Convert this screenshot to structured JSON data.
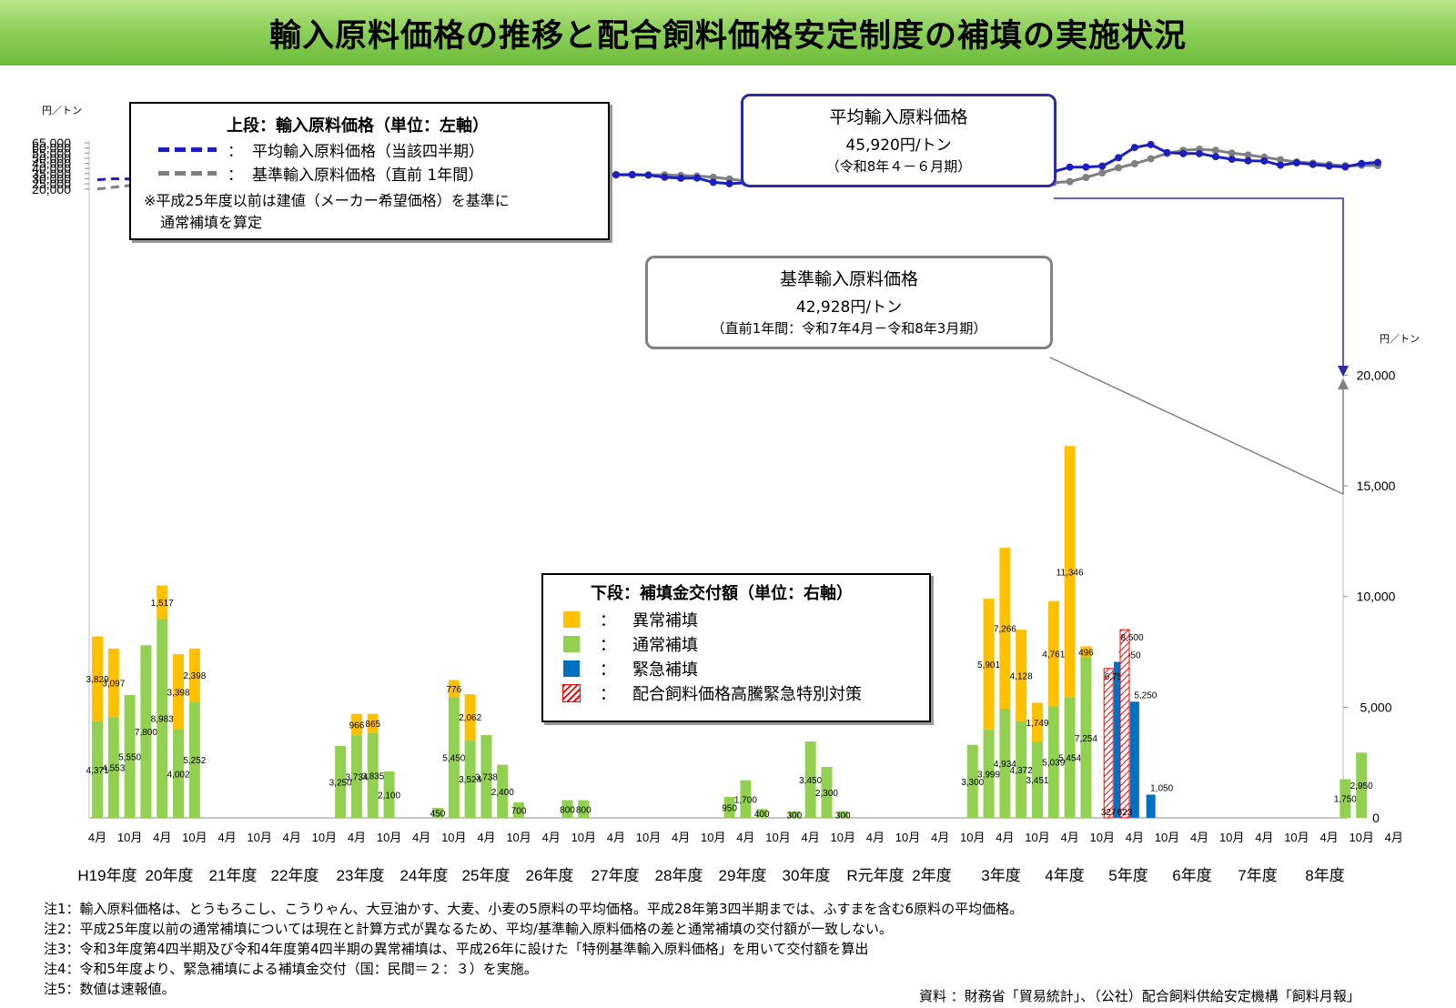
{
  "title": "輸入原料価格の推移と配合飼料価格安定制度の補填の実施状況",
  "left_axis_unit": "円／トン",
  "right_axis_unit": "円／トン",
  "legend_top": {
    "heading": "上段：輸入原料価格（単位：左軸）",
    "avg_label": "平均輸入原料価格（当該四半期）",
    "base_label": "基準輸入原料価格（直前 1年間）",
    "note_line1": "※平成25年度以前は建値（メーカー希望価格）を基準に",
    "note_line2": "通常補填を算定",
    "colon": "："
  },
  "legend_bottom": {
    "heading": "下段：補填金交付額（単位：右軸）",
    "items": [
      {
        "label": "異常補填",
        "color": "#ffc000"
      },
      {
        "label": "通常補填",
        "color": "#92d050"
      },
      {
        "label": "緊急補填",
        "color": "#0070c0"
      },
      {
        "label": "配合飼料価格高騰緊急特別対策",
        "color": "#ff0000"
      }
    ],
    "colon": "："
  },
  "callout_avg": {
    "line1": "平均輸入原料価格",
    "line2": "45,920円/トン",
    "line3": "（令和8年４－６月期）"
  },
  "callout_base": {
    "line1": "基準輸入原料価格",
    "line2": "42,928円/トン",
    "line3": "（直前1年間：令和7年4月－令和8年3月期）"
  },
  "colors": {
    "avg": "#1b1fbf",
    "base": "#7f7f7f",
    "abnormal": "#ffc000",
    "normal": "#92d050",
    "emergency": "#0070c0",
    "special": "#ff0000",
    "grid": "#d9d9d9"
  },
  "notes": [
    "注1：輸入原料価格は、とうもろこし、こうりゃん、大豆油かす、大麦、小麦の5原料の平均価格。平成28年第3四半期までは、ふすまを含む6原料の平均価格。",
    "注2：平成25年度以前の通常補填については現在と計算方式が異なるため、平均/基準輸入原料価格の差と通常補填の交付額が一致しない。",
    "注3：令和3年度第4四半期及び令和4年度第4四半期の異常補填は、平成26年に設けた「特例基準輸入原料価格」を用いて交付額を算出",
    "注4：令和5年度より、緊急補填による補填金交付（国：民間＝２：３）を実施。",
    "注5：数値は速報値。"
  ],
  "source": "資料 ：財務省「貿易統計」、（公社）配合飼料供給安定機構「飼料月報」",
  "chart_data": {
    "type": "line",
    "left_ylim": [
      15000,
      65000
    ],
    "left_ticks": [
      "65,000",
      "60,000",
      "55,000",
      "50,000",
      "45,000",
      "40,000",
      "35,000",
      "30,000",
      "25,000",
      "20,000"
    ],
    "right_ylim": [
      0,
      22000
    ],
    "right_ticks": [
      "0",
      "5,000",
      "10,000",
      "15,000",
      "20,000"
    ],
    "x_month_labels": [
      "4月",
      "10月",
      "4月",
      "10月",
      "4月",
      "10月",
      "4月",
      "10月",
      "4月",
      "10月",
      "4月",
      "10月",
      "4月",
      "10月",
      "4月",
      "10月",
      "4月",
      "10月",
      "4月",
      "10月",
      "4月",
      "10月",
      "4月",
      "10月",
      "4月",
      "10月",
      "4月",
      "10月",
      "4月",
      "10月",
      "4月",
      "10月",
      "4月",
      "10月",
      "4月",
      "10月",
      "4月",
      "10月",
      "4月",
      "10月",
      "4月"
    ],
    "x_year_labels": [
      "H19年度",
      "20年度",
      "21年度",
      "22年度",
      "23年度",
      "24年度",
      "25年度",
      "26年度",
      "27年度",
      "28年度",
      "29年度",
      "30年度",
      "R元年度",
      "2年度",
      "3年度",
      "4年度",
      "5年度",
      "6年度",
      "7年度",
      "8年度"
    ],
    "series": [
      {
        "name": "平均輸入原料価格（当該四半期）",
        "style": "dashed-until-index-28",
        "values": [
          29000,
          30000,
          29800,
          31500,
          34000,
          37000,
          41000,
          41200,
          27800,
          22800,
          24500,
          24000,
          24500,
          25000,
          24000,
          22500,
          26500,
          29000,
          30000,
          29000,
          27000,
          27500,
          27800,
          30500,
          33500,
          36500,
          36500,
          34500,
          32500,
          33500,
          32800,
          33900,
          34000,
          34100,
          33500,
          31500,
          30500,
          30700,
          26500,
          25200,
          26000,
          27300,
          27500,
          26800,
          26500,
          26400,
          27000,
          26800,
          29500,
          30000,
          29000,
          28800,
          28000,
          27800,
          27300,
          27000,
          25200,
          25100,
          29500,
          37000,
          41300,
          41400,
          42300,
          50500,
          60500,
          63300,
          55500,
          54500,
          54500,
          51500,
          49000,
          47500,
          47300,
          43200,
          45500,
          44000,
          42300,
          41500,
          44800,
          45920
        ]
      },
      {
        "name": "基準輸入原料価格（直前 1年間）",
        "style": "dashed-until-index-28",
        "values": [
          20000,
          21700,
          23400,
          25000,
          26700,
          28300,
          29800,
          31700,
          33600,
          33000,
          29000,
          25000,
          23200,
          22700,
          22600,
          22500,
          22200,
          22700,
          24000,
          25600,
          27500,
          28500,
          28700,
          28300,
          28500,
          30000,
          32200,
          34200,
          35300,
          35700,
          35500,
          34500,
          33600,
          33600,
          33700,
          33700,
          33200,
          32600,
          31500,
          29800,
          27800,
          26600,
          26300,
          26300,
          26400,
          26500,
          26600,
          26900,
          26900,
          27500,
          28600,
          29500,
          30000,
          29500,
          28800,
          28300,
          27800,
          27300,
          26700,
          26300,
          27200,
          31300,
          35800,
          40700,
          44600,
          49500,
          54600,
          57700,
          58800,
          57700,
          55000,
          53100,
          51000,
          48500,
          46400,
          45200,
          43800,
          42700,
          43100,
          42928
        ]
      },
      {
        "name": "異常補填",
        "values": [
          {
            "q": 0,
            "v": 3829
          },
          {
            "q": 1,
            "v": 3097
          },
          {
            "q": 4,
            "v": 1517
          },
          {
            "q": 5,
            "v": 3398
          },
          {
            "q": 6,
            "v": 2398
          },
          {
            "q": 16,
            "v": 966
          },
          {
            "q": 17,
            "v": 865
          },
          {
            "q": 22,
            "v": 776
          },
          {
            "q": 23,
            "v": 2062
          },
          {
            "q": 55,
            "v": 5901
          },
          {
            "q": 56,
            "v": 7266
          },
          {
            "q": 57,
            "v": 4128
          },
          {
            "q": 58,
            "v": 1749
          },
          {
            "q": 59,
            "v": 4761
          },
          {
            "q": 60,
            "v": 11346
          },
          {
            "q": 61,
            "v": 496
          }
        ]
      },
      {
        "name": "通常補填",
        "values": [
          {
            "q": 0,
            "v": 4371
          },
          {
            "q": 1,
            "v": 4553
          },
          {
            "q": 2,
            "v": 5550
          },
          {
            "q": 3,
            "v": 7800
          },
          {
            "q": 4,
            "v": 8983
          },
          {
            "q": 5,
            "v": 4002
          },
          {
            "q": 6,
            "v": 5252
          },
          {
            "q": 15,
            "v": 3250
          },
          {
            "q": 16,
            "v": 3734
          },
          {
            "q": 17,
            "v": 3835
          },
          {
            "q": 18,
            "v": 2100
          },
          {
            "q": 21,
            "v": 450
          },
          {
            "q": 22,
            "v": 5450
          },
          {
            "q": 23,
            "v": 3524
          },
          {
            "q": 24,
            "v": 3738
          },
          {
            "q": 25,
            "v": 2400
          },
          {
            "q": 26,
            "v": 700
          },
          {
            "q": 29,
            "v": 800
          },
          {
            "q": 30,
            "v": 800
          },
          {
            "q": 39,
            "v": 950
          },
          {
            "q": 40,
            "v": 1700
          },
          {
            "q": 41,
            "v": 400
          },
          {
            "q": 43,
            "v": 300
          },
          {
            "q": 44,
            "v": 3450
          },
          {
            "q": 45,
            "v": 2300
          },
          {
            "q": 46,
            "v": 300
          },
          {
            "q": 54,
            "v": 3300
          },
          {
            "q": 55,
            "v": 3999
          },
          {
            "q": 56,
            "v": 4934
          },
          {
            "q": 57,
            "v": 4372
          },
          {
            "q": 58,
            "v": 3451
          },
          {
            "q": 59,
            "v": 5039
          },
          {
            "q": 60,
            "v": 5454
          },
          {
            "q": 61,
            "v": 7254
          },
          {
            "q": 77,
            "v": 1750
          },
          {
            "q": 78,
            "v": 2950
          }
        ]
      },
      {
        "name": "緊急補填",
        "values": [
          {
            "q": 63,
            "v": 7050
          },
          {
            "q": 64,
            "v": 5250
          },
          {
            "q": 65,
            "v": 1050
          }
        ]
      },
      {
        "name": "配合飼料価格高騰緊急特別対策",
        "values": [
          {
            "q": 62,
            "v": 6750,
            "bottom_label": "327"
          },
          {
            "q": 63,
            "v": 8500,
            "bottom_label": "623"
          }
        ]
      }
    ]
  }
}
